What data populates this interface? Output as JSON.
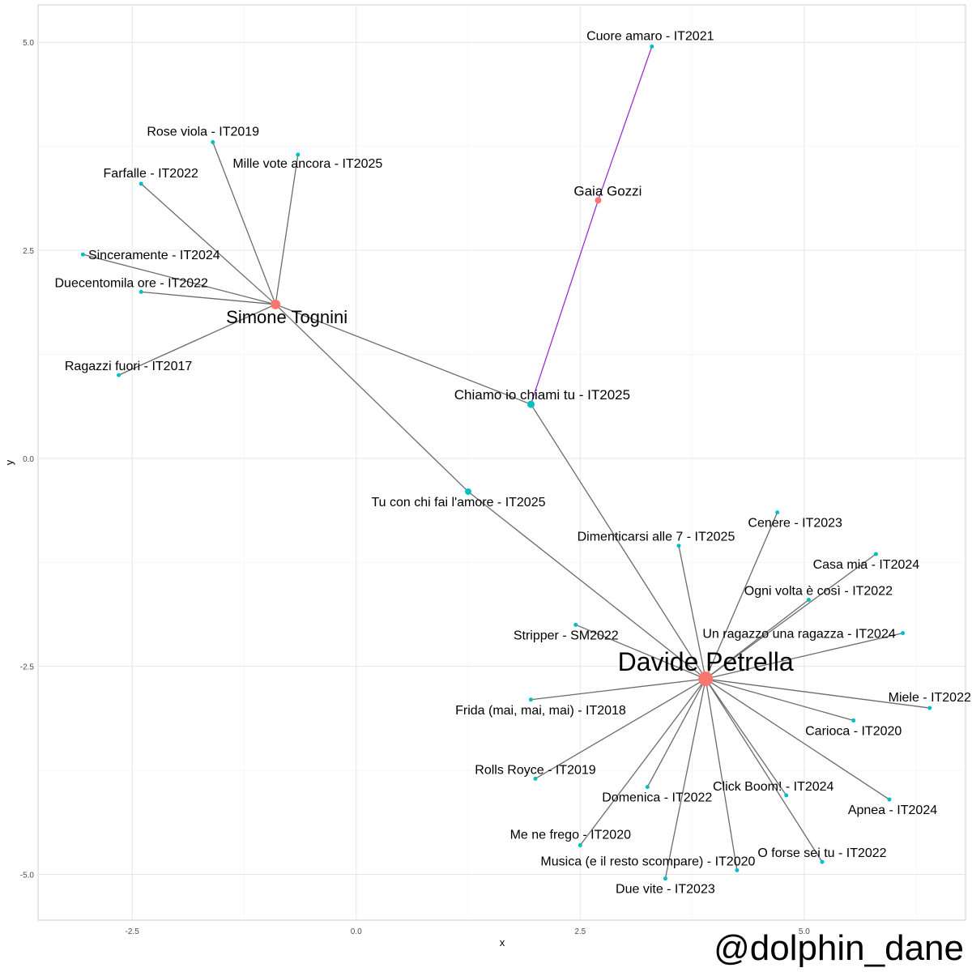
{
  "chart_data": {
    "type": "scatter",
    "xlabel": "x",
    "ylabel": "y",
    "xlim": [
      -3.55,
      6.8
    ],
    "ylim": [
      -5.55,
      5.45
    ],
    "x_ticks": [
      {
        "value": -2.5,
        "label": "-2.5"
      },
      {
        "value": 0.0,
        "label": "0.0"
      },
      {
        "value": 2.5,
        "label": "2.5"
      },
      {
        "value": 5.0,
        "label": "5.0"
      }
    ],
    "y_ticks": [
      {
        "value": 5.0,
        "label": "5.0"
      },
      {
        "value": 2.5,
        "label": "2.5"
      },
      {
        "value": 0.0,
        "label": "0.0"
      },
      {
        "value": -2.5,
        "label": "-2.5"
      },
      {
        "value": -5.0,
        "label": "-5.0"
      }
    ],
    "grid": true,
    "colors": {
      "artist": "#f8766d",
      "song": "#00bfc4",
      "edge": "#6b6b6b",
      "highlight_edge": "#9b30d0"
    },
    "nodes": [
      {
        "label": "Davide Petrella",
        "x": 3.9,
        "y": -2.65,
        "kind": "artist",
        "size": 18,
        "font": 32,
        "dx": 0,
        "dy": -10
      },
      {
        "label": "Simone Tognini",
        "x": -0.9,
        "y": 1.85,
        "kind": "artist",
        "size": 12,
        "font": 22,
        "dx": 14,
        "dy": 23
      },
      {
        "label": "Gaia Gozzi",
        "x": 2.7,
        "y": 3.1,
        "kind": "artist",
        "size": 8,
        "font": 17,
        "dx": 12,
        "dy": -6
      },
      {
        "label": "Chiamo io chiami tu - IT2025",
        "x": 1.95,
        "y": 0.65,
        "kind": "song",
        "size": 9,
        "font": 17,
        "dx": 14,
        "dy": -6
      },
      {
        "label": "Tu con chi fai l'amore - IT2025",
        "x": 1.25,
        "y": -0.4,
        "kind": "song",
        "size": 8,
        "font": 16,
        "dx": -12,
        "dy": 18
      },
      {
        "label": "Cuore amaro - IT2021",
        "x": 3.3,
        "y": 4.95,
        "kind": "song",
        "size": 5,
        "font": 16,
        "dx": -2,
        "dy": -8
      },
      {
        "label": "Rose viola - IT2019",
        "x": -1.6,
        "y": 3.8,
        "kind": "song",
        "size": 5,
        "font": 16,
        "dx": -12,
        "dy": -8
      },
      {
        "label": "Mille vote ancora - IT2025",
        "x": -0.65,
        "y": 3.65,
        "kind": "song",
        "size": 5,
        "font": 16,
        "dx": 12,
        "dy": 16
      },
      {
        "label": "Farfalle - IT2022",
        "x": -2.4,
        "y": 3.3,
        "kind": "song",
        "size": 5,
        "font": 16,
        "dx": 12,
        "dy": -8
      },
      {
        "label": "Sinceramente - IT2024",
        "x": -3.05,
        "y": 2.45,
        "kind": "song",
        "size": 5,
        "font": 16,
        "dx": 88,
        "dy": 6
      },
      {
        "label": "Duecentomila ore - IT2022",
        "x": -2.4,
        "y": 2.0,
        "kind": "song",
        "size": 5,
        "font": 16,
        "dx": -12,
        "dy": -6
      },
      {
        "label": "Ragazzi fuori - IT2017",
        "x": -2.65,
        "y": 1.0,
        "kind": "song",
        "size": 5,
        "font": 16,
        "dx": 12,
        "dy": -6
      },
      {
        "label": "Cenere - IT2023",
        "x": 4.7,
        "y": -0.65,
        "kind": "song",
        "size": 5,
        "font": 16,
        "dx": 22,
        "dy": 18
      },
      {
        "label": "Dimenticarsi alle 7 - IT2025",
        "x": 3.6,
        "y": -1.05,
        "kind": "song",
        "size": 5,
        "font": 16,
        "dx": -28,
        "dy": -6
      },
      {
        "label": "Casa mia - IT2024",
        "x": 5.8,
        "y": -1.15,
        "kind": "song",
        "size": 5,
        "font": 16,
        "dx": -12,
        "dy": 18
      },
      {
        "label": "Ogni volta è così - IT2022",
        "x": 5.05,
        "y": -1.7,
        "kind": "song",
        "size": 5,
        "font": 16,
        "dx": 12,
        "dy": -6
      },
      {
        "label": "Stripper - SM2022",
        "x": 2.45,
        "y": -2.0,
        "kind": "song",
        "size": 5,
        "font": 16,
        "dx": -12,
        "dy": 18
      },
      {
        "label": "Un ragazzo una ragazza - IT2024",
        "x": 6.1,
        "y": -2.1,
        "kind": "song",
        "size": 5,
        "font": 16,
        "dx": -128,
        "dy": 6
      },
      {
        "label": "Frida (mai, mai, mai) - IT2018",
        "x": 1.95,
        "y": -2.9,
        "kind": "song",
        "size": 5,
        "font": 16,
        "dx": 12,
        "dy": 18
      },
      {
        "label": "Miele - IT2022",
        "x": 6.4,
        "y": -3.0,
        "kind": "song",
        "size": 5,
        "font": 16,
        "dx": 0,
        "dy": -8
      },
      {
        "label": "Carioca - IT2020",
        "x": 5.55,
        "y": -3.15,
        "kind": "song",
        "size": 5,
        "font": 16,
        "dx": 0,
        "dy": 18
      },
      {
        "label": "Rolls Royce - IT2019",
        "x": 2.0,
        "y": -3.85,
        "kind": "song",
        "size": 5,
        "font": 16,
        "dx": 0,
        "dy": -6
      },
      {
        "label": "Domenica - IT2022",
        "x": 3.25,
        "y": -3.95,
        "kind": "song",
        "size": 5,
        "font": 16,
        "dx": 12,
        "dy": 18
      },
      {
        "label": "Click Boom! - IT2024",
        "x": 4.8,
        "y": -4.05,
        "kind": "song",
        "size": 5,
        "font": 16,
        "dx": -16,
        "dy": -6
      },
      {
        "label": "Apnea - IT2024",
        "x": 5.95,
        "y": -4.1,
        "kind": "song",
        "size": 5,
        "font": 16,
        "dx": 4,
        "dy": 18
      },
      {
        "label": "Me ne frego - IT2020",
        "x": 2.5,
        "y": -4.65,
        "kind": "song",
        "size": 5,
        "font": 16,
        "dx": -12,
        "dy": -8
      },
      {
        "label": "O forse sei tu - IT2022",
        "x": 5.2,
        "y": -4.85,
        "kind": "song",
        "size": 5,
        "font": 16,
        "dx": 0,
        "dy": -6
      },
      {
        "label": "Musica (e il resto scompare) - IT2020",
        "x": 4.25,
        "y": -4.95,
        "kind": "song",
        "size": 5,
        "font": 16,
        "dx": -110,
        "dy": -6
      },
      {
        "label": "Due vite - IT2023",
        "x": 3.45,
        "y": -5.05,
        "kind": "song",
        "size": 5,
        "font": 16,
        "dx": 0,
        "dy": 18
      }
    ],
    "edges": [
      {
        "from": "Simone Tognini",
        "to": "Rose viola - IT2019"
      },
      {
        "from": "Simone Tognini",
        "to": "Mille vote ancora - IT2025"
      },
      {
        "from": "Simone Tognini",
        "to": "Farfalle - IT2022"
      },
      {
        "from": "Simone Tognini",
        "to": "Sinceramente - IT2024"
      },
      {
        "from": "Simone Tognini",
        "to": "Duecentomila ore - IT2022"
      },
      {
        "from": "Simone Tognini",
        "to": "Ragazzi fuori - IT2017"
      },
      {
        "from": "Simone Tognini",
        "to": "Chiamo io chiami tu - IT2025"
      },
      {
        "from": "Simone Tognini",
        "to": "Tu con chi fai l'amore - IT2025"
      },
      {
        "from": "Gaia Gozzi",
        "to": "Cuore amaro - IT2021",
        "highlight": true
      },
      {
        "from": "Gaia Gozzi",
        "to": "Chiamo io chiami tu - IT2025",
        "highlight": true
      },
      {
        "from": "Davide Petrella",
        "to": "Chiamo io chiami tu - IT2025"
      },
      {
        "from": "Davide Petrella",
        "to": "Tu con chi fai l'amore - IT2025"
      },
      {
        "from": "Davide Petrella",
        "to": "Cenere - IT2023"
      },
      {
        "from": "Davide Petrella",
        "to": "Dimenticarsi alle 7 - IT2025"
      },
      {
        "from": "Davide Petrella",
        "to": "Casa mia - IT2024"
      },
      {
        "from": "Davide Petrella",
        "to": "Ogni volta è così - IT2022"
      },
      {
        "from": "Davide Petrella",
        "to": "Stripper - SM2022"
      },
      {
        "from": "Davide Petrella",
        "to": "Un ragazzo una ragazza - IT2024"
      },
      {
        "from": "Davide Petrella",
        "to": "Frida (mai, mai, mai) - IT2018"
      },
      {
        "from": "Davide Petrella",
        "to": "Miele - IT2022"
      },
      {
        "from": "Davide Petrella",
        "to": "Carioca - IT2020"
      },
      {
        "from": "Davide Petrella",
        "to": "Rolls Royce - IT2019"
      },
      {
        "from": "Davide Petrella",
        "to": "Domenica - IT2022"
      },
      {
        "from": "Davide Petrella",
        "to": "Click Boom! - IT2024"
      },
      {
        "from": "Davide Petrella",
        "to": "Apnea - IT2024"
      },
      {
        "from": "Davide Petrella",
        "to": "Me ne frego - IT2020"
      },
      {
        "from": "Davide Petrella",
        "to": "O forse sei tu - IT2022"
      },
      {
        "from": "Davide Petrella",
        "to": "Musica (e il resto scompare) - IT2020"
      },
      {
        "from": "Davide Petrella",
        "to": "Due vite - IT2023"
      }
    ]
  },
  "watermark": "@dolphin_dane"
}
